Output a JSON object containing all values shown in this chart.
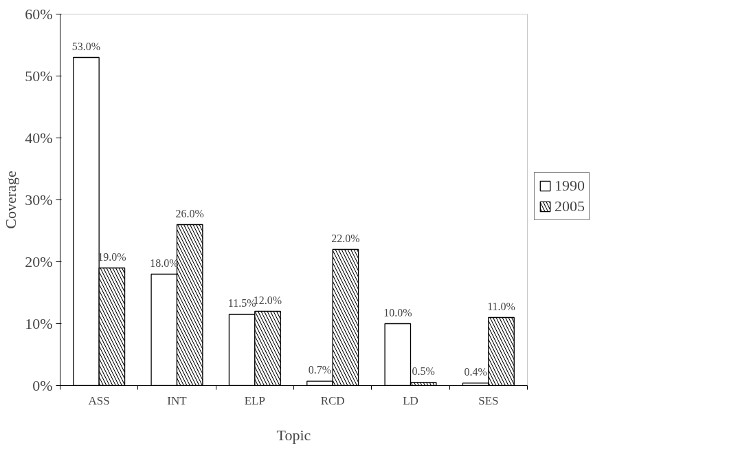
{
  "chart_data": {
    "type": "bar",
    "xlabel": "Topic",
    "ylabel": "Coverage",
    "categories": [
      "ASS",
      "INT",
      "ELP",
      "RCD",
      "LD",
      "SES"
    ],
    "series": [
      {
        "name": "1990",
        "color": "#ffffff",
        "values": [
          53.0,
          18.0,
          11.5,
          0.7,
          10.0,
          0.4
        ],
        "value_labels": [
          "53.0%",
          "18.0%",
          "11.5%",
          "0.7%",
          "10.0%",
          "0.4%"
        ]
      },
      {
        "name": "2005",
        "color": "#000000",
        "values": [
          19.0,
          26.0,
          12.0,
          22.0,
          0.5,
          11.0
        ],
        "value_labels": [
          "19.0%",
          "26.0%",
          "12.0%",
          "22.0%",
          "0.5%",
          "11.0%"
        ]
      }
    ],
    "ylim": [
      0,
      60
    ],
    "yticks": [
      {
        "value": 0,
        "label": "0%"
      },
      {
        "value": 10,
        "label": "10%"
      },
      {
        "value": 20,
        "label": "20%"
      },
      {
        "value": 30,
        "label": "30%"
      },
      {
        "value": 40,
        "label": "40%"
      },
      {
        "value": 50,
        "label": "50%"
      },
      {
        "value": 60,
        "label": "60%"
      }
    ],
    "grid": false,
    "legend": "right"
  }
}
